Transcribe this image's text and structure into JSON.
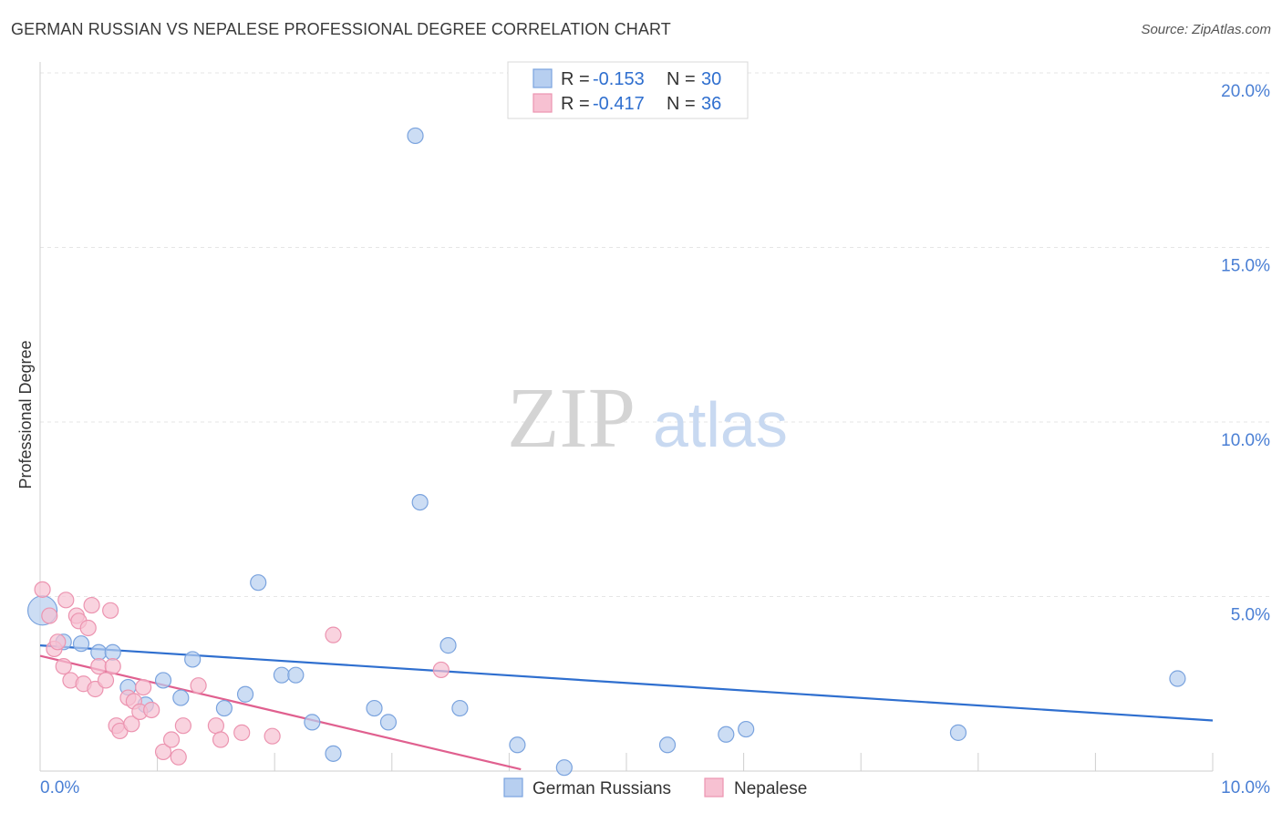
{
  "title": "GERMAN RUSSIAN VS NEPALESE PROFESSIONAL DEGREE CORRELATION CHART",
  "source": "Source: ZipAtlas.com",
  "watermark": {
    "zip": "ZIP",
    "atlas": "atlas"
  },
  "colors": {
    "blue_fill": "#b7cff0",
    "blue_stroke": "#7aa3de",
    "blue_line": "#2f6fcf",
    "pink_fill": "#f7c1d2",
    "pink_stroke": "#ec94b0",
    "pink_line": "#e0608f",
    "grid": "#e6e6e6",
    "tick_text": "#4a7fd4"
  },
  "legend": {
    "rows": [
      {
        "r_label": "R =",
        "r_value": "-0.153",
        "n_label": "N =",
        "n_value": "30"
      },
      {
        "r_label": "R =",
        "r_value": "-0.417",
        "n_label": "N =",
        "n_value": "36"
      }
    ]
  },
  "chart_data": {
    "type": "scatter",
    "title": "GERMAN RUSSIAN VS NEPALESE PROFESSIONAL DEGREE CORRELATION CHART",
    "xlabel": "",
    "ylabel": "Professional Degree",
    "xlim": [
      0,
      10
    ],
    "ylim": [
      0,
      20
    ],
    "x_tick_labels": [
      "0.0%",
      "10.0%"
    ],
    "y_ticks": [
      5,
      10,
      15,
      20
    ],
    "y_tick_labels": [
      "5.0%",
      "10.0%",
      "15.0%",
      "20.0%"
    ],
    "grid": true,
    "series": [
      {
        "name": "German Russians",
        "r": -0.153,
        "n": 30,
        "trend": {
          "x": [
            0.0,
            10.0
          ],
          "y": [
            3.6,
            1.45
          ]
        },
        "points": [
          {
            "x": 0.02,
            "y": 4.6,
            "size": "large"
          },
          {
            "x": 0.2,
            "y": 3.7
          },
          {
            "x": 0.35,
            "y": 3.65
          },
          {
            "x": 0.5,
            "y": 3.4
          },
          {
            "x": 0.62,
            "y": 3.4
          },
          {
            "x": 0.75,
            "y": 2.4
          },
          {
            "x": 0.9,
            "y": 1.9
          },
          {
            "x": 1.05,
            "y": 2.6
          },
          {
            "x": 1.2,
            "y": 2.1
          },
          {
            "x": 1.3,
            "y": 3.2
          },
          {
            "x": 1.57,
            "y": 1.8
          },
          {
            "x": 1.75,
            "y": 2.2
          },
          {
            "x": 1.86,
            "y": 5.4
          },
          {
            "x": 2.06,
            "y": 2.75
          },
          {
            "x": 2.18,
            "y": 2.75
          },
          {
            "x": 2.32,
            "y": 1.4
          },
          {
            "x": 2.5,
            "y": 0.5
          },
          {
            "x": 2.85,
            "y": 1.8
          },
          {
            "x": 2.97,
            "y": 1.4
          },
          {
            "x": 3.2,
            "y": 18.2
          },
          {
            "x": 3.24,
            "y": 7.7
          },
          {
            "x": 3.48,
            "y": 3.6
          },
          {
            "x": 3.58,
            "y": 1.8
          },
          {
            "x": 4.07,
            "y": 0.75
          },
          {
            "x": 4.47,
            "y": 0.1
          },
          {
            "x": 5.35,
            "y": 0.75
          },
          {
            "x": 5.85,
            "y": 1.05
          },
          {
            "x": 6.02,
            "y": 1.2
          },
          {
            "x": 7.83,
            "y": 1.1
          },
          {
            "x": 9.7,
            "y": 2.65
          }
        ]
      },
      {
        "name": "Nepalese",
        "r": -0.417,
        "n": 36,
        "trend": {
          "x": [
            0.0,
            4.1
          ],
          "y": [
            3.3,
            0.05
          ]
        },
        "points": [
          {
            "x": 0.02,
            "y": 5.2
          },
          {
            "x": 0.08,
            "y": 4.45
          },
          {
            "x": 0.12,
            "y": 3.5
          },
          {
            "x": 0.15,
            "y": 3.7
          },
          {
            "x": 0.2,
            "y": 3.0
          },
          {
            "x": 0.22,
            "y": 4.9
          },
          {
            "x": 0.26,
            "y": 2.6
          },
          {
            "x": 0.31,
            "y": 4.45
          },
          {
            "x": 0.33,
            "y": 4.3
          },
          {
            "x": 0.37,
            "y": 2.5
          },
          {
            "x": 0.41,
            "y": 4.1
          },
          {
            "x": 0.44,
            "y": 4.75
          },
          {
            "x": 0.47,
            "y": 2.35
          },
          {
            "x": 0.5,
            "y": 3.0
          },
          {
            "x": 0.56,
            "y": 2.6
          },
          {
            "x": 0.6,
            "y": 4.6
          },
          {
            "x": 0.62,
            "y": 3.0
          },
          {
            "x": 0.65,
            "y": 1.3
          },
          {
            "x": 0.68,
            "y": 1.15
          },
          {
            "x": 0.75,
            "y": 2.1
          },
          {
            "x": 0.78,
            "y": 1.35
          },
          {
            "x": 0.8,
            "y": 2.0
          },
          {
            "x": 0.85,
            "y": 1.7
          },
          {
            "x": 0.88,
            "y": 2.4
          },
          {
            "x": 0.95,
            "y": 1.75
          },
          {
            "x": 1.05,
            "y": 0.55
          },
          {
            "x": 1.12,
            "y": 0.9
          },
          {
            "x": 1.18,
            "y": 0.4
          },
          {
            "x": 1.22,
            "y": 1.3
          },
          {
            "x": 1.35,
            "y": 2.45
          },
          {
            "x": 1.5,
            "y": 1.3
          },
          {
            "x": 1.54,
            "y": 0.9
          },
          {
            "x": 1.72,
            "y": 1.1
          },
          {
            "x": 1.98,
            "y": 1.0
          },
          {
            "x": 2.5,
            "y": 3.9
          },
          {
            "x": 3.42,
            "y": 2.9
          }
        ]
      }
    ]
  }
}
